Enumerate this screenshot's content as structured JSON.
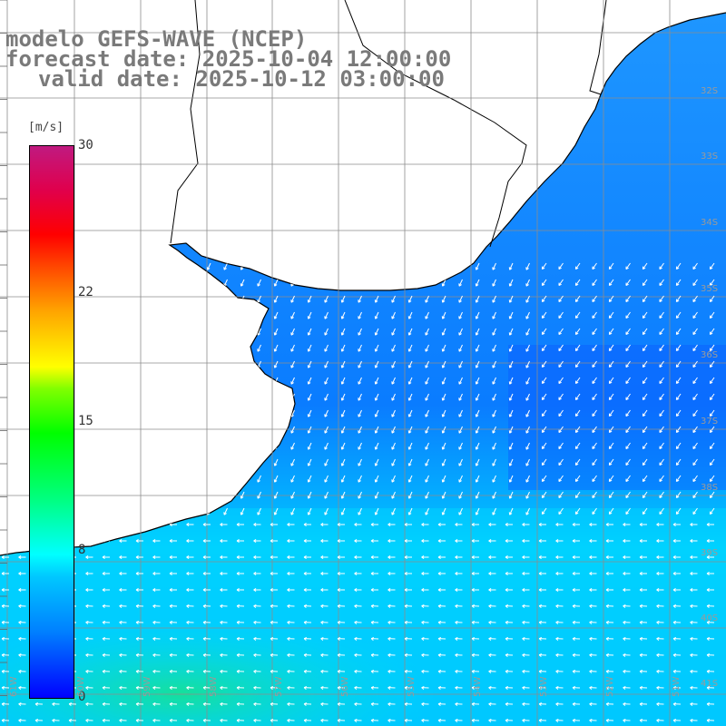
{
  "title": {
    "line1": "modelo GEFS-WAVE (NCEP)",
    "line2": "forecast date: 2025-10-04 12:00:00",
    "line3": "valid date: 2025-10-12 03:00:00"
  },
  "legend": {
    "unit": "[m/s]",
    "ticks": [
      {
        "label": "30",
        "value": 30
      },
      {
        "label": "22",
        "value": 22
      },
      {
        "label": "15",
        "value": 15
      },
      {
        "label": "8",
        "value": 8
      },
      {
        "label": "0",
        "value": 0
      }
    ],
    "colors": [
      "#0000ff",
      "#0080ff",
      "#00c8ff",
      "#00ffff",
      "#00ff80",
      "#00ff00",
      "#80ff00",
      "#ffff00",
      "#ffa500",
      "#ff0000",
      "#c01a80"
    ]
  },
  "grid": {
    "lon_labels": [
      "61W",
      "60W",
      "59W",
      "58W",
      "57W",
      "56W",
      "55W",
      "54W",
      "53W",
      "52W",
      "51W"
    ],
    "lat_labels": [
      "32S",
      "33S",
      "34S",
      "35S",
      "36S",
      "37S",
      "38S",
      "39S",
      "40S",
      "41S"
    ]
  },
  "colors": {
    "land": "#ffffff",
    "coast": "#000000",
    "grid": "#8c8c8c",
    "arrow": "#ffffff"
  }
}
